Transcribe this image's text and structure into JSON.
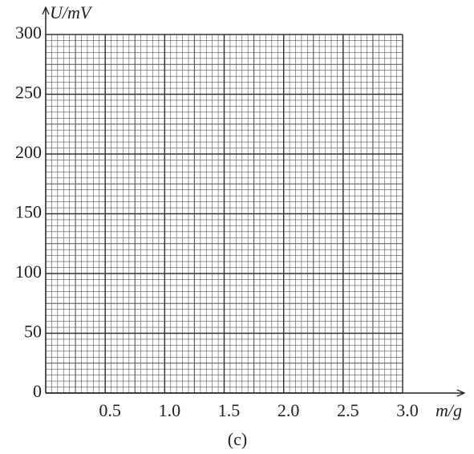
{
  "chart_data": {
    "type": "line",
    "xlabel": "m/g",
    "ylabel": "U/mV",
    "caption": "(c)",
    "xlim": [
      0,
      3
    ],
    "ylim": [
      0,
      300
    ],
    "xticks": [
      0.5,
      {
        "value": 1,
        "label": "1.0"
      },
      1.5,
      {
        "value": 2,
        "label": "2.0"
      },
      2.5,
      {
        "value": 3,
        "label": "3.0"
      }
    ],
    "yticks": [
      0,
      50,
      100,
      150,
      200,
      250,
      300
    ],
    "grid": true,
    "series": []
  }
}
